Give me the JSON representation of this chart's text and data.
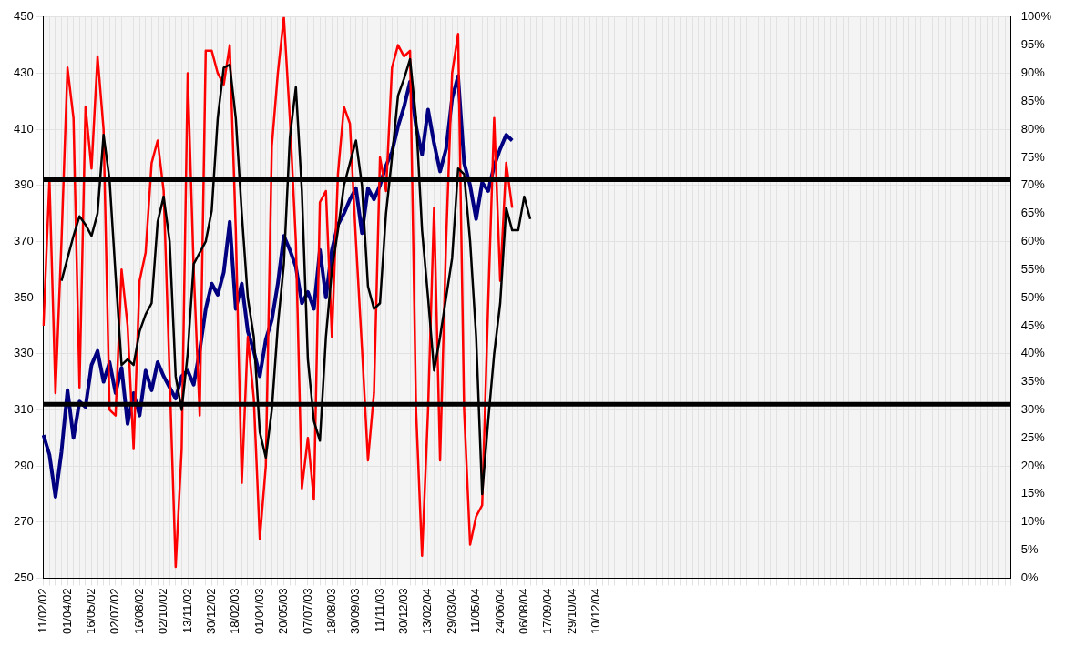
{
  "chart_data": {
    "type": "line",
    "categories": [
      "11/02/02",
      null,
      null,
      null,
      "01/04/02",
      null,
      null,
      null,
      "16/05/02",
      null,
      null,
      null,
      "02/07/02",
      null,
      null,
      null,
      "16/08/02",
      null,
      null,
      null,
      "02/10/02",
      null,
      null,
      null,
      "13/11/02",
      null,
      null,
      null,
      "30/12/02",
      null,
      null,
      null,
      "18/02/03",
      null,
      null,
      null,
      "01/04/03",
      null,
      null,
      null,
      "20/05/03",
      null,
      null,
      null,
      "07/07/03",
      null,
      null,
      null,
      "18/08/03",
      null,
      null,
      null,
      "30/09/03",
      null,
      null,
      null,
      "11/11/03",
      null,
      null,
      null,
      "30/12/03",
      null,
      null,
      null,
      "13/02/04",
      null,
      null,
      null,
      "29/03/04",
      null,
      null,
      null,
      "11/05/04",
      null,
      null,
      null,
      "24/06/04",
      null,
      null,
      null,
      "06/08/04",
      null,
      null,
      null,
      "17/09/04",
      null,
      null,
      null,
      "29/10/04",
      null,
      null,
      null,
      "10/12/04",
      null,
      null,
      null,
      null,
      null,
      null,
      null,
      null,
      null,
      null,
      null,
      null,
      null,
      null,
      null,
      null,
      null,
      null,
      null,
      null,
      null,
      null,
      null,
      null,
      null,
      null,
      null,
      null,
      null,
      null,
      null,
      null,
      null,
      null,
      null,
      null,
      null,
      null,
      null,
      null,
      null,
      null,
      null,
      null,
      null,
      null,
      null,
      null,
      null,
      null,
      null,
      null,
      null,
      null,
      null,
      null,
      null,
      null,
      null,
      null,
      null,
      null,
      null,
      null,
      null,
      null,
      null,
      null,
      null
    ],
    "ylim": [
      250,
      450
    ],
    "yticks": [
      250,
      270,
      290,
      310,
      330,
      350,
      370,
      390,
      410,
      430,
      450
    ],
    "y2lim": [
      0,
      100
    ],
    "y2ticks": [
      {
        "value": 0,
        "label": "0%"
      },
      {
        "value": 5,
        "label": "5%"
      },
      {
        "value": 10,
        "label": "10%"
      },
      {
        "value": 15,
        "label": "15%"
      },
      {
        "value": 20,
        "label": "20%"
      },
      {
        "value": 25,
        "label": "25%"
      },
      {
        "value": 30,
        "label": "30%"
      },
      {
        "value": 35,
        "label": "35%"
      },
      {
        "value": 40,
        "label": "40%"
      },
      {
        "value": 45,
        "label": "45%"
      },
      {
        "value": 50,
        "label": "50%"
      },
      {
        "value": 55,
        "label": "55%"
      },
      {
        "value": 60,
        "label": "60%"
      },
      {
        "value": 65,
        "label": "65%"
      },
      {
        "value": 70,
        "label": "70%"
      },
      {
        "value": 75,
        "label": "75%"
      },
      {
        "value": 80,
        "label": "80%"
      },
      {
        "value": 85,
        "label": "85%"
      },
      {
        "value": 90,
        "label": "90%"
      },
      {
        "value": 95,
        "label": "95%"
      },
      {
        "value": 100,
        "label": "100%"
      }
    ],
    "grid": true,
    "legend": false,
    "marker": "none",
    "series": [
      {
        "color": "#000080",
        "axis": "y",
        "values": [
          301,
          294,
          279,
          295,
          317,
          300,
          313,
          311,
          326,
          331,
          320,
          327,
          316,
          325,
          305,
          316,
          308,
          324,
          317,
          327,
          322,
          318,
          314,
          322,
          324,
          319,
          331,
          346,
          355,
          351,
          359,
          377,
          346,
          355,
          338,
          331,
          322,
          335,
          342,
          355,
          372,
          367,
          361,
          348,
          352,
          346,
          367,
          350,
          367,
          376,
          380,
          385,
          389,
          373,
          389,
          385,
          390,
          397,
          402,
          411,
          418,
          427,
          411,
          401,
          417,
          405,
          395,
          403,
          421,
          429,
          398,
          390,
          378,
          391,
          388,
          397,
          403,
          408,
          406,
          null,
          null,
          null,
          null,
          null,
          null,
          null,
          null,
          null,
          null,
          null,
          null,
          null,
          null,
          null,
          null,
          null,
          null,
          null,
          null,
          null,
          null,
          null,
          null,
          null,
          null,
          null,
          null,
          null,
          null,
          null,
          null,
          null,
          null,
          null,
          null,
          null,
          null,
          null,
          null,
          null,
          null,
          null,
          null,
          null,
          null,
          null,
          null,
          null,
          null,
          null,
          null,
          null,
          null,
          null,
          null,
          null,
          null,
          null,
          null,
          null,
          null,
          null,
          null,
          null,
          null,
          null,
          null,
          null,
          null,
          null,
          null,
          null,
          null,
          null,
          null,
          null,
          null,
          null,
          null,
          null,
          null,
          null
        ]
      },
      {
        "color": "#ff0000",
        "axis": "y2",
        "values": [
          45,
          71,
          33,
          60,
          91,
          82,
          34,
          84,
          73,
          93,
          80,
          30,
          29,
          55,
          45,
          23,
          53,
          58,
          74,
          78,
          69,
          36,
          2,
          23,
          90,
          55,
          29,
          94,
          94,
          90,
          88,
          95,
          62,
          17,
          43,
          32,
          7,
          20,
          77,
          90,
          100,
          82,
          60,
          16,
          25,
          14,
          67,
          69,
          43,
          72,
          84,
          81,
          60,
          41,
          21,
          33,
          75,
          69,
          91,
          95,
          93,
          94,
          30,
          4,
          30,
          66,
          21,
          60,
          90,
          97,
          30,
          6,
          11,
          13,
          49,
          82,
          53,
          74,
          66,
          null,
          null,
          null,
          null,
          null,
          null,
          null,
          null,
          null,
          null,
          null,
          null,
          null,
          null,
          null,
          null,
          null,
          null,
          null,
          null,
          null,
          null,
          null,
          null,
          null,
          null,
          null,
          null,
          null,
          null,
          null,
          null,
          null,
          null,
          null,
          null,
          null,
          null,
          null,
          null,
          null,
          null,
          null,
          null,
          null,
          null,
          null,
          null,
          null,
          null,
          null,
          null,
          null,
          null,
          null,
          null,
          null,
          null,
          null,
          null,
          null,
          null,
          null,
          null,
          null,
          null,
          null,
          null,
          null,
          null,
          null,
          null,
          null,
          null,
          null,
          null,
          null,
          null,
          null,
          null,
          null,
          null,
          null
        ]
      },
      {
        "color": "#000000",
        "axis": "y2",
        "values": [
          null,
          null,
          null,
          53,
          57,
          61,
          64.5,
          63,
          61,
          65,
          79,
          71,
          54,
          38,
          39,
          38,
          44,
          47,
          49,
          63.5,
          68,
          60,
          36,
          30,
          40,
          56,
          58,
          60,
          65.5,
          82,
          91,
          91.5,
          82,
          65,
          50,
          43,
          26,
          21.5,
          30,
          45,
          56,
          78.5,
          87.5,
          69,
          39,
          28,
          24.5,
          43,
          55,
          62,
          70,
          74,
          78,
          70,
          52,
          48,
          49,
          65,
          75,
          86,
          89,
          92.5,
          82,
          62,
          50,
          37,
          43,
          50,
          57,
          73,
          72,
          60,
          43,
          15,
          28,
          40,
          49,
          66,
          62,
          62,
          68,
          64,
          null,
          null,
          null,
          null,
          null,
          null,
          null,
          null,
          null,
          null,
          null,
          null,
          null,
          null,
          null,
          null,
          null,
          null,
          null,
          null,
          null,
          null,
          null,
          null,
          null,
          null,
          null,
          null,
          null,
          null,
          null,
          null,
          null,
          null,
          null,
          null,
          null,
          null,
          null,
          null,
          null,
          null,
          null,
          null,
          null,
          null,
          null,
          null,
          null,
          null,
          null,
          null,
          null,
          null,
          null,
          null,
          null,
          null,
          null,
          null,
          null,
          null,
          null,
          null,
          null,
          null,
          null,
          null,
          null,
          null,
          null,
          null,
          null,
          null,
          null,
          null,
          null,
          null,
          null,
          null
        ]
      }
    ],
    "ref_lines": [
      {
        "axis": "y2",
        "value": 71,
        "color": "#000000"
      },
      {
        "axis": "y2",
        "value": 31,
        "color": "#000000"
      }
    ]
  }
}
